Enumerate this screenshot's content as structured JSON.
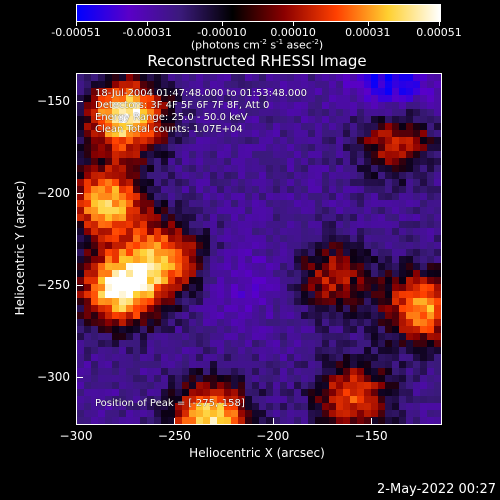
{
  "colorbar": {
    "tick_labels": [
      "-0.00051",
      "-0.00031",
      "-0.00010",
      "0.00010",
      "0.00031",
      "0.00051"
    ],
    "tick_values": [
      -0.00051,
      -0.00031,
      -0.0001,
      0.0001,
      0.00031,
      0.00051
    ],
    "range": [
      -0.00051,
      0.00051
    ],
    "units_prefix": "(photons cm",
    "units_exp1": "-2",
    "units_mid1": " s",
    "units_exp2": "-1",
    "units_mid2": " asec",
    "units_exp3": "-2",
    "units_suffix": ")",
    "colors": [
      "#0000ff",
      "#5a00c8",
      "#3a1a7a",
      "#000000",
      "#8b0000",
      "#ff4000",
      "#ffd030",
      "#ffffff"
    ]
  },
  "chart_data": {
    "type": "heatmap",
    "title": "Reconstructed RHESSI Image",
    "xlabel": "Heliocentric X (arcsec)",
    "ylabel": "Heliocentric Y (arcsec)",
    "xlim": [
      -300,
      -115
    ],
    "ylim": [
      -325,
      -135
    ],
    "x_ticks": [
      -300,
      -250,
      -200,
      -150
    ],
    "x_tick_labels": [
      "−300",
      "−250",
      "−200",
      "−150"
    ],
    "y_ticks": [
      -150,
      -200,
      -250,
      -300
    ],
    "y_tick_labels": [
      "−150",
      "−200",
      "−250",
      "−300"
    ],
    "annotations": {
      "time_range": "18-Jul-2004 01:47:48.000 to 01:53:48.000",
      "detectors": "Detectors: 3F 4F 5F 6F 7F 8F, Att 0",
      "energy": "Energy Range: 25.0 - 50.0 keV",
      "clean": "Clean     Total counts: 1.07E+04",
      "peak": "Position of Peak = [-275,-158]"
    },
    "peak_position": [
      -275,
      -158
    ],
    "hot_regions": [
      {
        "x": -275,
        "y": -158,
        "level": 0.00051
      },
      {
        "x": -278,
        "y": -252,
        "level": 0.0005
      },
      {
        "x": -232,
        "y": -322,
        "level": 0.00045
      },
      {
        "x": -285,
        "y": -205,
        "level": 0.0004
      },
      {
        "x": -124,
        "y": -262,
        "level": 0.00035
      },
      {
        "x": -255,
        "y": -235,
        "level": 0.0003
      },
      {
        "x": -160,
        "y": -310,
        "level": 0.00025
      },
      {
        "x": -138,
        "y": -170,
        "level": 0.0002
      },
      {
        "x": -170,
        "y": -245,
        "level": 0.00015
      }
    ],
    "cold_regions": [
      {
        "x": -140,
        "y": -140,
        "level": -0.00051
      },
      {
        "x": -215,
        "y": -248,
        "level": -0.0003
      },
      {
        "x": -180,
        "y": -300,
        "level": -0.0002
      }
    ]
  },
  "footer": {
    "date": "2-May-2022 00:27"
  }
}
